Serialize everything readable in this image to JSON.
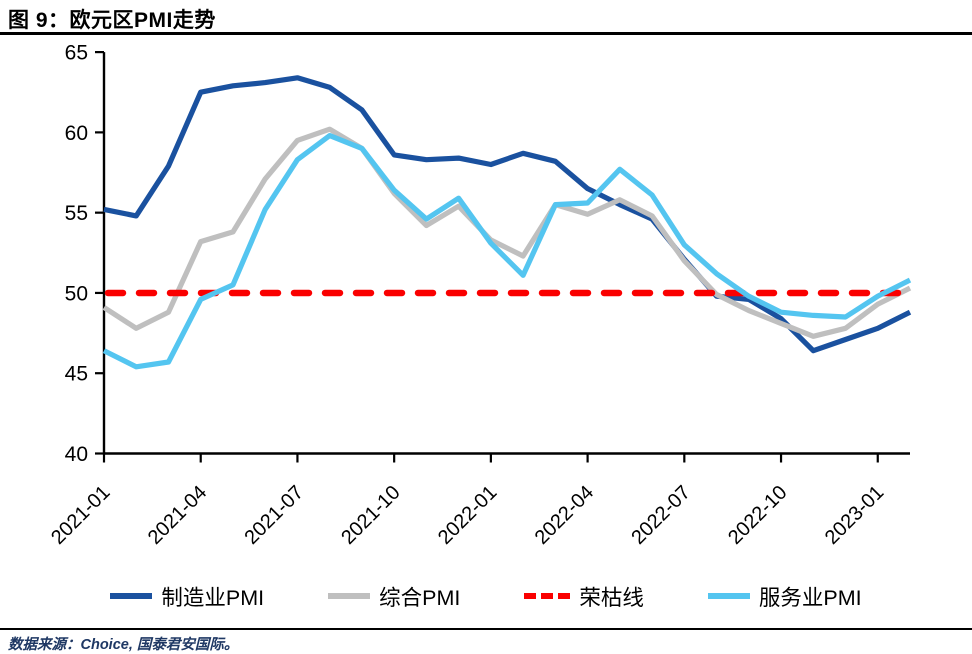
{
  "title": "图 9：欧元区PMI走势",
  "source": "数据来源：Choice, 国泰君安国际。",
  "chart_data": {
    "type": "line",
    "title": "图 9：欧元区PMI走势",
    "xlabel": "",
    "ylabel": "",
    "ylim": [
      40,
      65
    ],
    "y_ticks": [
      65,
      60,
      55,
      50,
      45,
      40
    ],
    "x_tick_every": 3,
    "x_tick_labels": [
      "2021-01",
      "2021-04",
      "2021-07",
      "2021-10",
      "2022-01",
      "2022-04",
      "2022-07",
      "2022-10",
      "2023-01"
    ],
    "x_labels": [
      "2021-01",
      "2021-02",
      "2021-03",
      "2021-04",
      "2021-05",
      "2021-06",
      "2021-07",
      "2021-08",
      "2021-09",
      "2021-10",
      "2021-11",
      "2021-12",
      "2022-01",
      "2022-02",
      "2022-03",
      "2022-04",
      "2022-05",
      "2022-06",
      "2022-07",
      "2022-08",
      "2022-09",
      "2022-10",
      "2022-11",
      "2022-12",
      "2023-01",
      "2023-02"
    ],
    "grid": false,
    "legend_position": "bottom",
    "axis_color": "#000000",
    "series": [
      {
        "name": "制造业PMI",
        "color": "#1A519F",
        "style": "solid",
        "values": [
          55.2,
          54.8,
          57.9,
          62.5,
          62.9,
          63.1,
          63.4,
          62.8,
          61.4,
          58.6,
          58.3,
          58.4,
          58.0,
          58.7,
          58.2,
          56.5,
          55.5,
          54.6,
          52.1,
          49.8,
          49.6,
          48.4,
          46.4,
          47.1,
          47.8,
          48.8
        ]
      },
      {
        "name": "综合PMI",
        "color": "#BFBFBF",
        "style": "solid",
        "values": [
          49.1,
          47.8,
          48.8,
          53.2,
          53.8,
          57.1,
          59.5,
          60.2,
          59.0,
          56.2,
          54.2,
          55.4,
          53.3,
          52.3,
          55.5,
          54.9,
          55.8,
          54.8,
          52.0,
          49.9,
          48.9,
          48.1,
          47.3,
          47.8,
          49.3,
          50.3
        ]
      },
      {
        "name": "荣枯线",
        "color": "#FA0000",
        "style": "dashed",
        "type": "threshold",
        "value": 50
      },
      {
        "name": "服务业PMI",
        "color": "#54C5F0",
        "style": "solid",
        "values": [
          46.4,
          45.4,
          45.7,
          49.6,
          50.5,
          55.2,
          58.3,
          59.8,
          59.0,
          56.4,
          54.6,
          55.9,
          53.1,
          51.1,
          55.5,
          55.6,
          57.7,
          56.1,
          53.0,
          51.2,
          49.8,
          48.8,
          48.6,
          48.5,
          49.8,
          50.8
        ]
      }
    ]
  }
}
